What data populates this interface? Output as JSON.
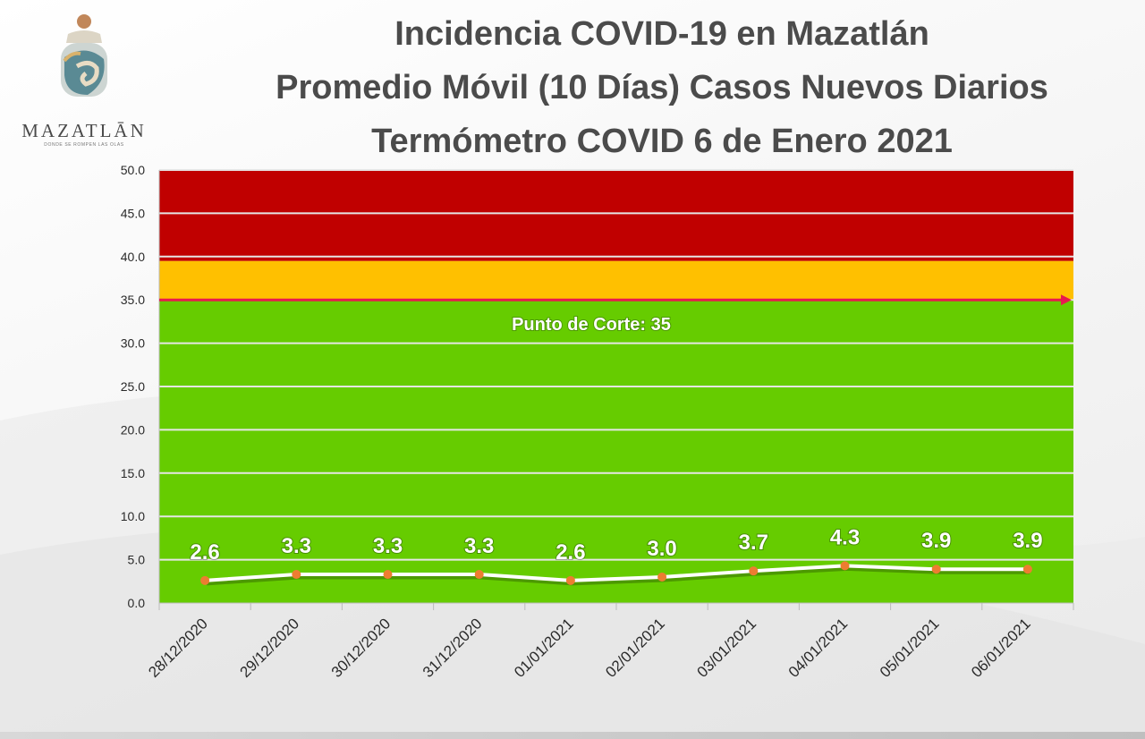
{
  "header": {
    "logo_word": "MAZATLĀN",
    "logo_tagline": "DONDE SE ROMPEN LAS OLAS",
    "title_lines": [
      "Incidencia COVID-19 en Mazatlán",
      "Promedio Móvil (10 Días) Casos Nuevos Diarios",
      "Termómetro COVID 6 de Enero 2021"
    ]
  },
  "chart_data": {
    "type": "line",
    "categories": [
      "28/12/2020",
      "29/12/2020",
      "30/12/2020",
      "31/12/2020",
      "01/01/2021",
      "02/01/2021",
      "03/01/2021",
      "04/01/2021",
      "05/01/2021",
      "06/01/2021"
    ],
    "values": [
      2.6,
      3.3,
      3.3,
      3.3,
      2.6,
      3.0,
      3.7,
      4.3,
      3.9,
      3.9
    ],
    "data_labels": [
      "2.6",
      "3.3",
      "3.3",
      "3.3",
      "2.6",
      "3.0",
      "3.7",
      "4.3",
      "3.9",
      "3.9"
    ],
    "ylim": [
      0,
      50
    ],
    "y_ticks": [
      "0.0",
      "5.0",
      "10.0",
      "15.0",
      "20.0",
      "25.0",
      "30.0",
      "35.0",
      "40.0",
      "45.0",
      "50.0"
    ],
    "grid": true,
    "bands": [
      {
        "from": 0,
        "to": 35,
        "color": "#66cc00"
      },
      {
        "from": 35,
        "to": 39.5,
        "color": "#ffc000"
      },
      {
        "from": 39.5,
        "to": 50,
        "color": "#c00000"
      }
    ],
    "cut_point": {
      "value": 35,
      "label": "Punto de Corte: 35",
      "color": "#e8194f"
    },
    "line_color": "#ffffff",
    "marker_color": "#ed7d31"
  }
}
